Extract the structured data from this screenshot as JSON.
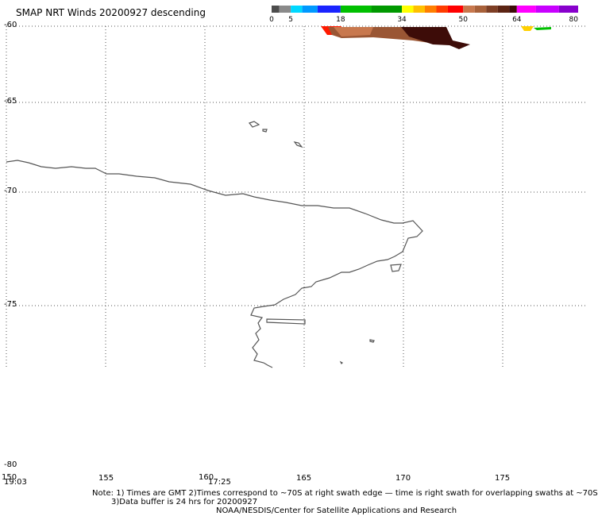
{
  "title": "SMAP NRT Winds  20200927  descending",
  "colorbar": {
    "tick_labels": [
      "0",
      "5",
      "18",
      "34",
      "50",
      "64",
      "80"
    ],
    "tick_values": [
      0,
      5,
      18,
      34,
      50,
      64,
      80
    ],
    "segments": [
      {
        "from": 0,
        "to": 2,
        "color": "#4d4d4d"
      },
      {
        "from": 2,
        "to": 5,
        "color": "#8a8a8a"
      },
      {
        "from": 5,
        "to": 8,
        "color": "#00d8ff"
      },
      {
        "from": 8,
        "to": 12,
        "color": "#0099ff"
      },
      {
        "from": 12,
        "to": 18,
        "color": "#1a24ff"
      },
      {
        "from": 18,
        "to": 26,
        "color": "#00c000"
      },
      {
        "from": 26,
        "to": 34,
        "color": "#009900"
      },
      {
        "from": 34,
        "to": 37,
        "color": "#ffff00"
      },
      {
        "from": 37,
        "to": 40,
        "color": "#ffc000"
      },
      {
        "from": 40,
        "to": 43,
        "color": "#ff7f00"
      },
      {
        "from": 43,
        "to": 46,
        "color": "#ff3c00"
      },
      {
        "from": 46,
        "to": 50,
        "color": "#ff0000"
      },
      {
        "from": 50,
        "to": 53,
        "color": "#c8784e"
      },
      {
        "from": 53,
        "to": 56,
        "color": "#a8613a"
      },
      {
        "from": 56,
        "to": 59,
        "color": "#7e3f25"
      },
      {
        "from": 59,
        "to": 62,
        "color": "#5c2414"
      },
      {
        "from": 62,
        "to": 64,
        "color": "#3d0c08"
      },
      {
        "from": 64,
        "to": 69,
        "color": "#ff00ff"
      },
      {
        "from": 69,
        "to": 75,
        "color": "#c800ff"
      },
      {
        "from": 75,
        "to": 80,
        "color": "#8800cc"
      }
    ]
  },
  "map": {
    "lat_range": [
      -60,
      -80
    ],
    "lon_range": [
      150,
      180
    ],
    "lat_labels": [
      "-60",
      "-65",
      "-70",
      "-75",
      "-80"
    ],
    "lat_values": [
      -60,
      -65,
      -70,
      -75,
      -80
    ],
    "lon_labels": [
      "150",
      "155",
      "160",
      "165",
      "170",
      "175"
    ],
    "lon_values": [
      150,
      155,
      160,
      165,
      170,
      175
    ],
    "grid": true,
    "swath_colors": [
      "#ff1a00",
      "#c8784e",
      "#8a4a2c",
      "#5c2414",
      "#3d0c08"
    ],
    "small_swath_colors": [
      "#ffd000",
      "#00c000"
    ]
  },
  "time_labels": [
    "19:03",
    "17:25"
  ],
  "notes": [
    "Note: 1) Times are GMT 2)Times correspond to ~70S at right swath edge — time is right swath for overlapping swaths at ~70S",
    "3)Data buffer is 24 hrs for 20200927",
    "NOAA/NESDIS/Center for Satellite Applications and Research"
  ]
}
